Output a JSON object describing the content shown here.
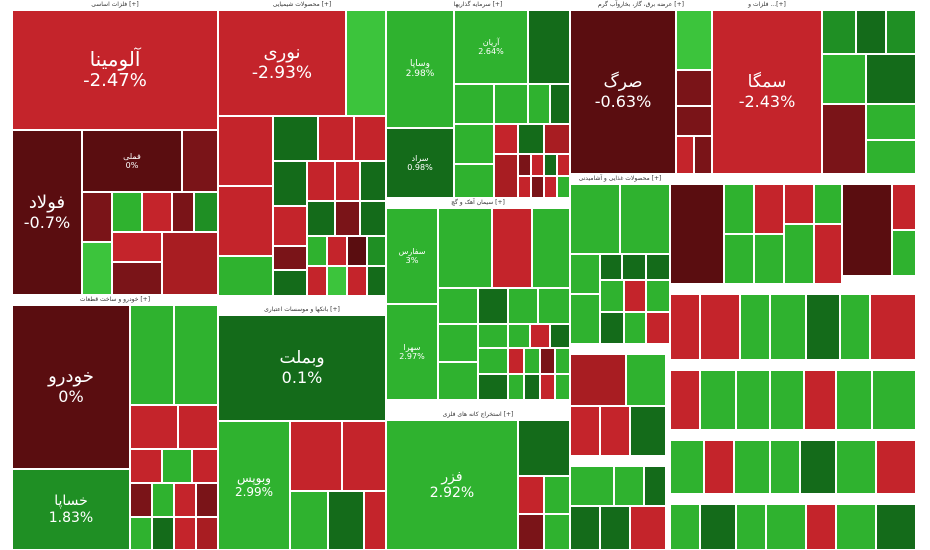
{
  "colors": {
    "r1": "#c4242b",
    "r2": "#a81d22",
    "r3": "#7a1418",
    "r4": "#5a0d10",
    "g1": "#2fb22f",
    "g2": "#3cc43c",
    "g3": "#1f8f24",
    "g4": "#146b1a"
  },
  "sectors": [
    {
      "label": "فلزات اساسی [+]"
    },
    {
      "label": "محصولات شیمیایی [+]"
    },
    {
      "label": "سرمایه گذاریها [+]"
    },
    {
      "label": "عرضه برق، گاز، بخاروآب گرم [+]"
    },
    {
      "label": "فلزات و ...[+]"
    },
    {
      "label": "خودرو و ساخت قطعات [+]"
    },
    {
      "label": "بانکها و موسسات اعتباری [+]"
    },
    {
      "label": "سیمان آهک و گچ [+]"
    },
    {
      "label": "محصولات غذایی و آشامیدنی [+]"
    },
    {
      "label": "استخراج کانه های فلزی [+]"
    }
  ],
  "tiles": {
    "aluminium": {
      "name": "آلومینا",
      "pct": "-2.47%"
    },
    "foolad": {
      "name": "فولاد",
      "pct": "-0.7%"
    },
    "fameli": {
      "name": "فملی",
      "pct": "0%"
    },
    "noori": {
      "name": "نوری",
      "pct": "-2.93%"
    },
    "vasapa": {
      "name": "وساپا",
      "pct": "2.98%"
    },
    "arian": {
      "name": "آریان",
      "pct": "2.64%"
    },
    "sarad": {
      "name": "سراد",
      "pct": "0.98%"
    },
    "sorg": {
      "name": "صرگ",
      "pct": "-0.63%"
    },
    "semga": {
      "name": "سمگا",
      "pct": "-2.43%"
    },
    "khodro": {
      "name": "خودرو",
      "pct": "0%"
    },
    "khsapa": {
      "name": "خساپا",
      "pct": "1.83%"
    },
    "vbmellat": {
      "name": "وبملت",
      "pct": "0.1%"
    },
    "vbposht": {
      "name": "وبوپس",
      "pct": "2.99%"
    },
    "fazar": {
      "name": "فزر",
      "pct": "2.92%"
    },
    "sfars": {
      "name": "سفارس",
      "pct": "3%"
    },
    "sahra": {
      "name": "سهرا",
      "pct": "2.97%"
    }
  }
}
